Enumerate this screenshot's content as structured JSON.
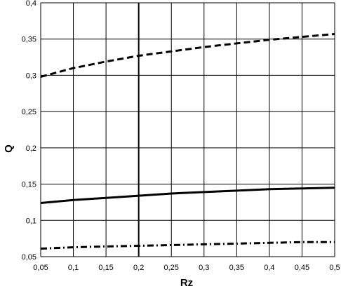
{
  "chart_data": {
    "type": "line",
    "title": "",
    "xlabel": "Rz",
    "ylabel": "Q",
    "xlim": [
      0.05,
      0.5
    ],
    "ylim": [
      0.05,
      0.4
    ],
    "grid": true,
    "x_ticks": [
      "0,05",
      "0,1",
      "0,15",
      "0,2",
      "0,25",
      "0,3",
      "0,35",
      "0,4",
      "0,45",
      "0,5"
    ],
    "y_ticks": [
      "0,05",
      "0,1",
      "0,15",
      "0,2",
      "0,25",
      "0,3",
      "0,35",
      "0,4"
    ],
    "x_tick_values": [
      0.05,
      0.1,
      0.15,
      0.2,
      0.25,
      0.3,
      0.35,
      0.4,
      0.45,
      0.5
    ],
    "y_tick_values": [
      0.05,
      0.1,
      0.15,
      0.2,
      0.25,
      0.3,
      0.35,
      0.4
    ],
    "vertical_marker": {
      "x": 0.2,
      "style": "solid"
    },
    "series": [
      {
        "style": "dashed",
        "x": [
          0.05,
          0.1,
          0.15,
          0.2,
          0.25,
          0.3,
          0.35,
          0.4,
          0.45,
          0.5
        ],
        "values": [
          0.298,
          0.31,
          0.319,
          0.327,
          0.333,
          0.339,
          0.344,
          0.349,
          0.353,
          0.357
        ]
      },
      {
        "style": "solid",
        "x": [
          0.05,
          0.1,
          0.15,
          0.2,
          0.25,
          0.3,
          0.35,
          0.4,
          0.45,
          0.5
        ],
        "values": [
          0.124,
          0.128,
          0.131,
          0.134,
          0.137,
          0.139,
          0.141,
          0.143,
          0.144,
          0.145
        ]
      },
      {
        "style": "dash-dot",
        "x": [
          0.05,
          0.1,
          0.15,
          0.2,
          0.25,
          0.3,
          0.35,
          0.4,
          0.45,
          0.5
        ],
        "values": [
          0.061,
          0.063,
          0.064,
          0.065,
          0.066,
          0.067,
          0.068,
          0.069,
          0.07,
          0.07
        ]
      }
    ]
  }
}
